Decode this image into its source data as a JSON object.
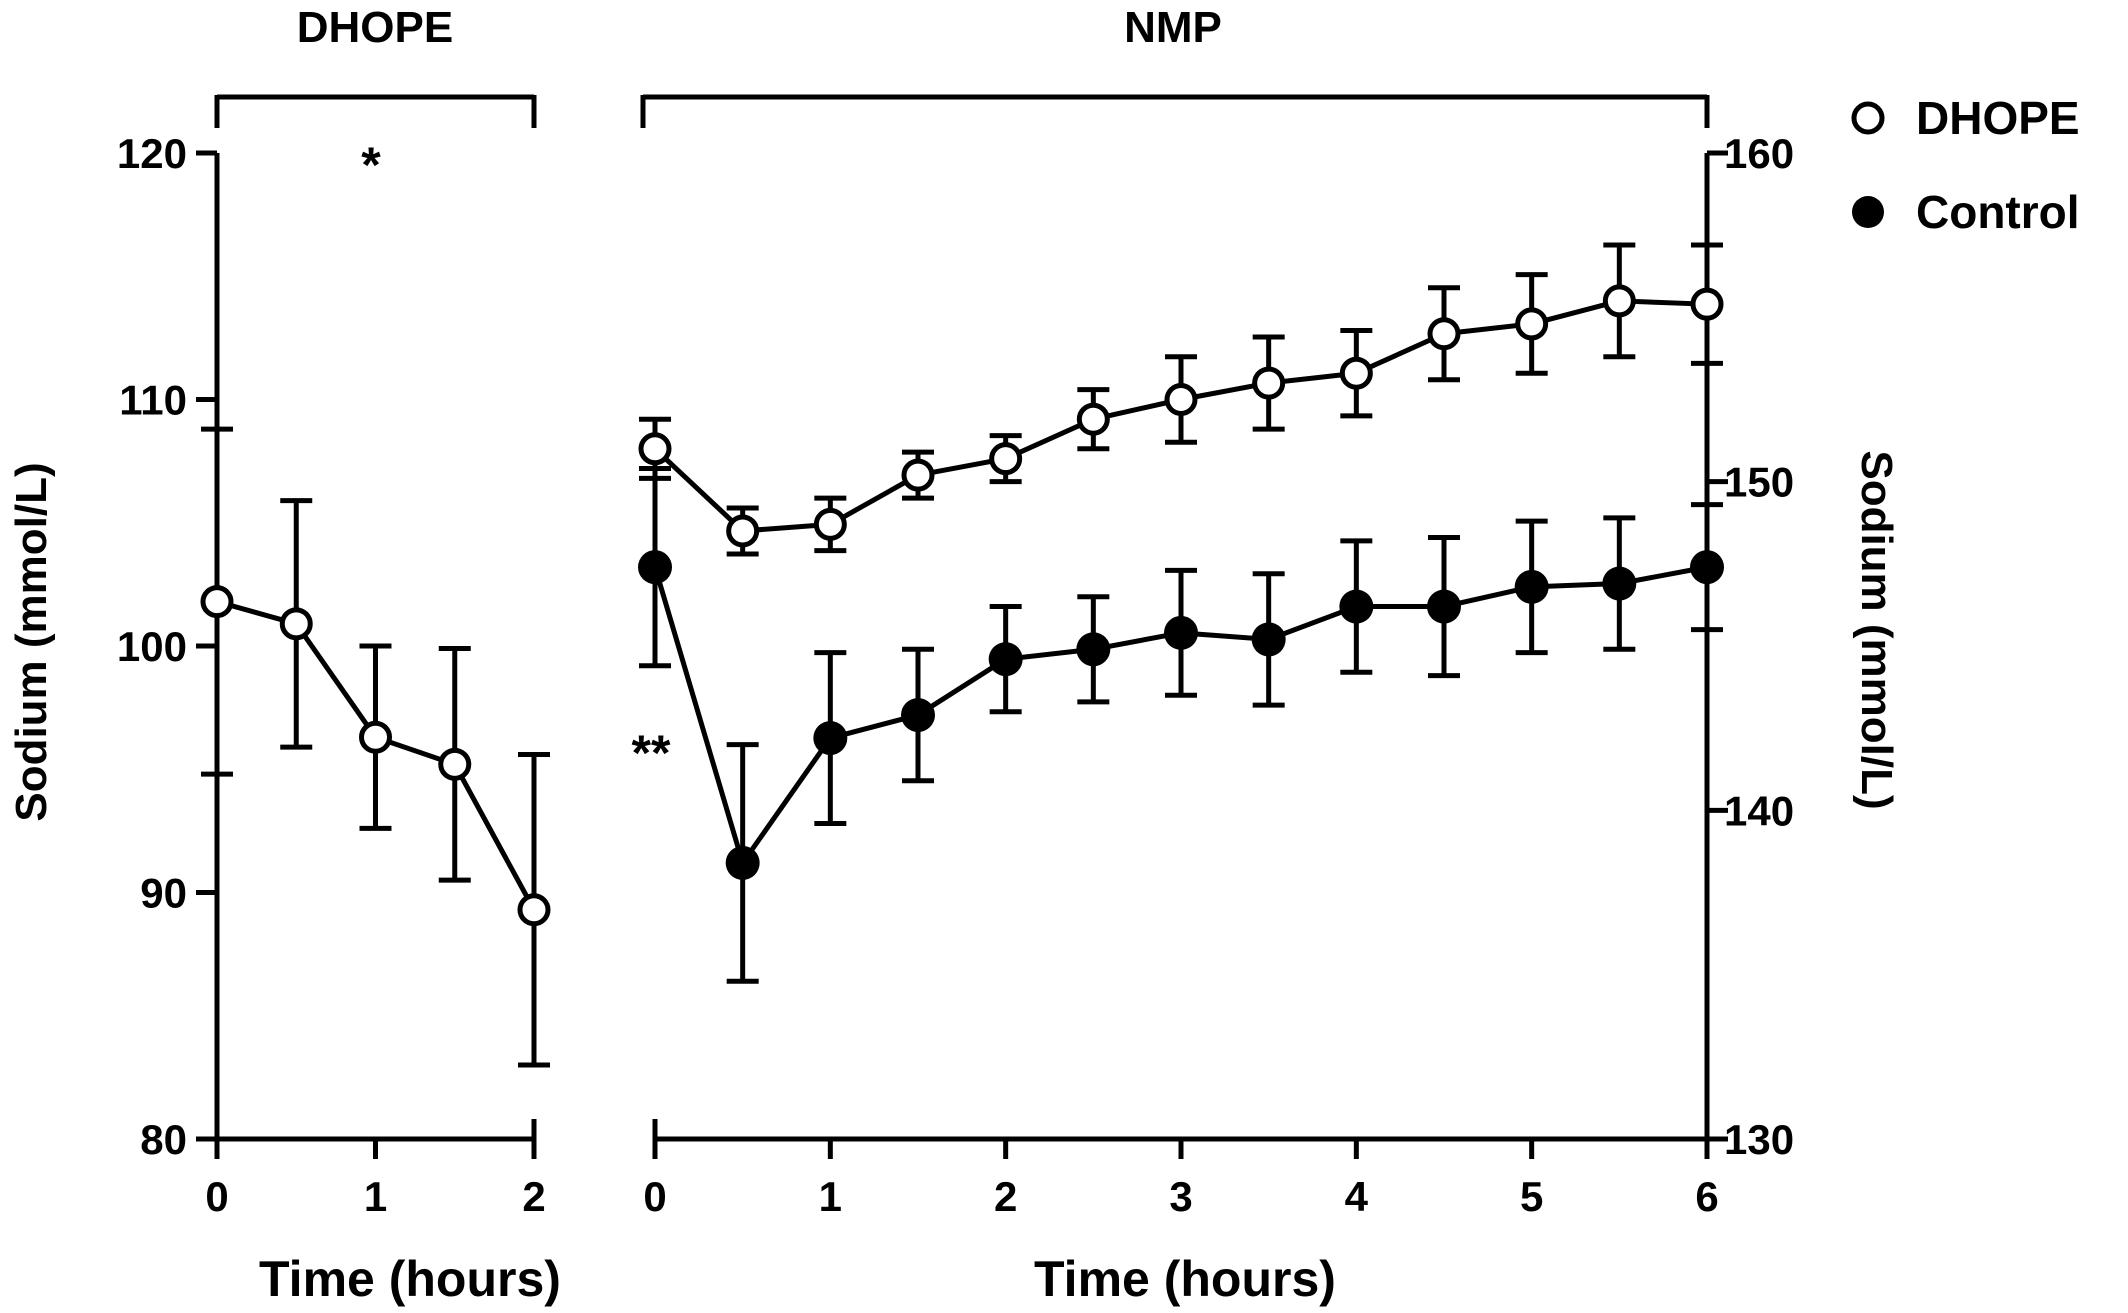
{
  "chart_data": [
    {
      "type": "line",
      "panel": "DHOPE",
      "bracket_label": "DHOPE",
      "xlabel": "Time (hours)",
      "ylabel": "Sodium (mmol/L)",
      "xlim": [
        0,
        2
      ],
      "ylim": [
        80,
        120
      ],
      "x_ticks": [
        "0",
        "1",
        "2"
      ],
      "y_ticks": [
        "80",
        "90",
        "100",
        "110",
        "120"
      ],
      "significance": "*",
      "series": [
        {
          "name": "DHOPE",
          "marker": "open-circle",
          "x": [
            0,
            0.5,
            1,
            1.5,
            2
          ],
          "y": [
            101.8,
            100.9,
            96.3,
            95.2,
            89.3
          ],
          "err": [
            7.0,
            5.0,
            3.7,
            4.7,
            6.3
          ]
        }
      ]
    },
    {
      "type": "line",
      "panel": "NMP",
      "bracket_label": "NMP",
      "xlabel": "Time (hours)",
      "ylabel": "Sodium (mmol/L)",
      "xlim": [
        0,
        6
      ],
      "ylim": [
        130,
        160
      ],
      "x_ticks": [
        "0",
        "1",
        "2",
        "3",
        "4",
        "5",
        "6"
      ],
      "y_ticks": [
        "130",
        "140",
        "150",
        "160"
      ],
      "significance": "**",
      "series": [
        {
          "name": "DHOPE",
          "marker": "open-circle",
          "x": [
            0,
            0.5,
            1,
            1.5,
            2,
            2.5,
            3,
            3.5,
            4,
            4.5,
            5,
            5.5,
            6
          ],
          "y": [
            151.0,
            148.5,
            148.7,
            150.2,
            150.7,
            151.9,
            152.5,
            153.0,
            153.3,
            154.5,
            154.8,
            155.5,
            155.4
          ],
          "err": [
            0.9,
            0.7,
            0.8,
            0.7,
            0.7,
            0.9,
            1.3,
            1.4,
            1.3,
            1.4,
            1.5,
            1.7,
            1.8
          ]
        },
        {
          "name": "Control",
          "marker": "filled-circle",
          "x": [
            0,
            0.5,
            1,
            1.5,
            2,
            2.5,
            3,
            3.5,
            4,
            4.5,
            5,
            5.5,
            6
          ],
          "y": [
            147.4,
            138.4,
            142.2,
            142.9,
            144.6,
            144.9,
            145.4,
            145.2,
            146.2,
            146.2,
            146.8,
            146.9,
            147.4
          ],
          "err": [
            3.0,
            3.6,
            2.6,
            2.0,
            1.6,
            1.6,
            1.9,
            2.0,
            2.0,
            2.1,
            2.0,
            2.0,
            1.9
          ]
        }
      ]
    }
  ],
  "legend": {
    "placement": "top-right",
    "items": [
      {
        "label": "DHOPE",
        "marker": "open-circle"
      },
      {
        "label": "Control",
        "marker": "filled-circle"
      }
    ]
  },
  "colors": {
    "line": "#000000",
    "open_fill": "#ffffff",
    "filled": "#000000"
  }
}
